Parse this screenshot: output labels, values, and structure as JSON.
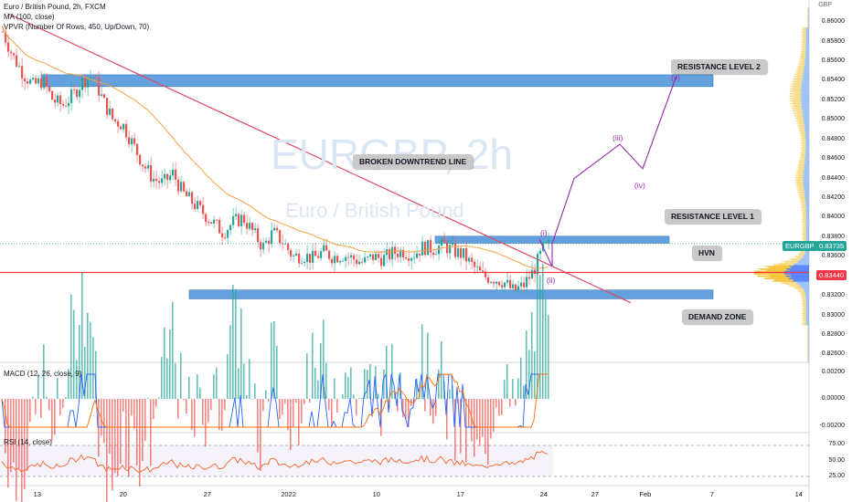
{
  "header": {
    "symbol_line": "Euro / British Pound, 2h, FXCM",
    "ma_line": "MA (100, close)",
    "vpvr_line": "VPVR (Number Of Rows, 450, Up/Down, 70)"
  },
  "watermark": {
    "ticker": "EURGBP, 2h",
    "name": "Euro / British Pound"
  },
  "currency": "GBP",
  "price_axis": [
    "0.86000",
    "0.85800",
    "0.85600",
    "0.85400",
    "0.85200",
    "0.85000",
    "0.84800",
    "0.84600",
    "0.84400",
    "0.84200",
    "0.84000",
    "0.83800",
    "0.83600",
    "0.83200",
    "0.83000",
    "0.82800",
    "0.82600"
  ],
  "current_price": {
    "ticker": "EURGBP",
    "value": "0.83735",
    "color": "#26a69a"
  },
  "hvn_level": {
    "value": "0.83440",
    "color": "#f23645"
  },
  "x_axis": [
    "13",
    "20",
    "27",
    "2022",
    "10",
    "17",
    "24",
    "27",
    "Feb",
    "7",
    "14"
  ],
  "callouts": {
    "resistance2": "RESISTANCE LEVEL 2",
    "resistance1": "RESISTANCE LEVEL 1",
    "downtrend": "BROKEN DOWNTREND LINE",
    "hvn": "HVN",
    "demand": "DEMAND ZONE"
  },
  "waves": {
    "i": "(i)",
    "ii": "(ii)",
    "iii": "(iii)",
    "iv": "(iv)",
    "v": "(v)"
  },
  "macd": {
    "label": "MACD (12, 26, close, 9)",
    "axis": [
      "0.00200",
      "0.00000",
      "-0.00200"
    ]
  },
  "rsi": {
    "label": "RSI (14, close)",
    "axis": [
      "75.00",
      "50.00",
      "25.00"
    ]
  },
  "colors": {
    "up": "#26a69a",
    "down": "#ef5350",
    "zone": "#4a90d9",
    "trend": "#e04a5f",
    "ma": "#f5a142",
    "wave": "#9c27b0"
  },
  "chart_data": {
    "type": "candlestick",
    "x": [
      "13",
      "20",
      "27",
      "2022",
      "10",
      "17",
      "24",
      "27",
      "Feb",
      "7",
      "14"
    ],
    "price_closes": [
      0.859,
      0.8565,
      0.8548,
      0.8535,
      0.854,
      0.852,
      0.8515,
      0.8525,
      0.854,
      0.8545,
      0.852,
      0.85,
      0.8495,
      0.8475,
      0.8455,
      0.844,
      0.8435,
      0.8445,
      0.8425,
      0.8415,
      0.8405,
      0.8395,
      0.8385,
      0.8395,
      0.84,
      0.8385,
      0.837,
      0.8385,
      0.8375,
      0.836,
      0.8362,
      0.8358,
      0.8365,
      0.836,
      0.8362,
      0.8358,
      0.8354,
      0.836,
      0.8358,
      0.8364,
      0.8366,
      0.8362,
      0.837,
      0.8368,
      0.8372,
      0.8366,
      0.8362,
      0.835,
      0.834,
      0.8338,
      0.8335,
      0.8325,
      0.833,
      0.8345,
      0.8368,
      0.8375
    ],
    "ylim": [
      0.825,
      0.862
    ],
    "zones": [
      {
        "label": "RESISTANCE LEVEL 2",
        "low": 0.8534,
        "high": 0.8546
      },
      {
        "label": "RESISTANCE LEVEL 1",
        "low": 0.8374,
        "high": 0.8381
      },
      {
        "label": "DEMAND ZONE",
        "low": 0.8317,
        "high": 0.8326
      }
    ],
    "hvn": 0.8344,
    "current": 0.83735
  }
}
